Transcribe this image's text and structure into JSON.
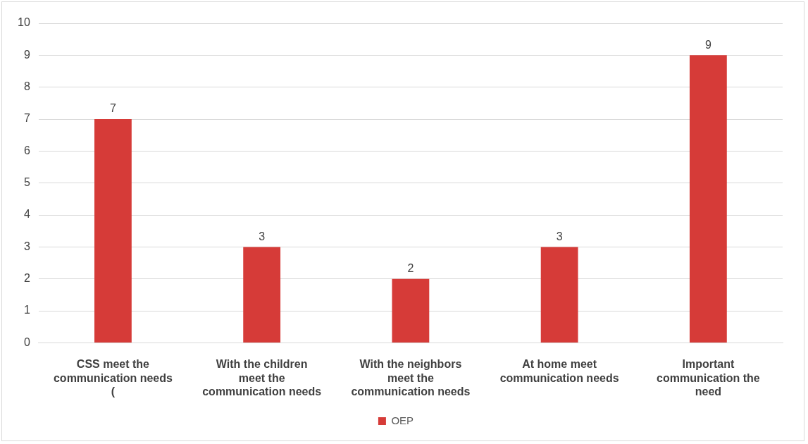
{
  "chart_data": {
    "type": "bar",
    "categories": [
      "CSS meet the communication needs (",
      "With the children meet the communication needs",
      "With the neighbors meet the communication needs",
      "At home meet communication needs",
      "Important communication the need"
    ],
    "series": [
      {
        "name": "OEP",
        "color": "#d63b38",
        "values": [
          7,
          3,
          2,
          3,
          9
        ]
      }
    ],
    "ylim": [
      0,
      10
    ],
    "yticks": [
      0,
      1,
      2,
      3,
      4,
      5,
      6,
      7,
      8,
      9,
      10
    ],
    "grid": "y",
    "legend": "bottom",
    "data_labels": true
  }
}
